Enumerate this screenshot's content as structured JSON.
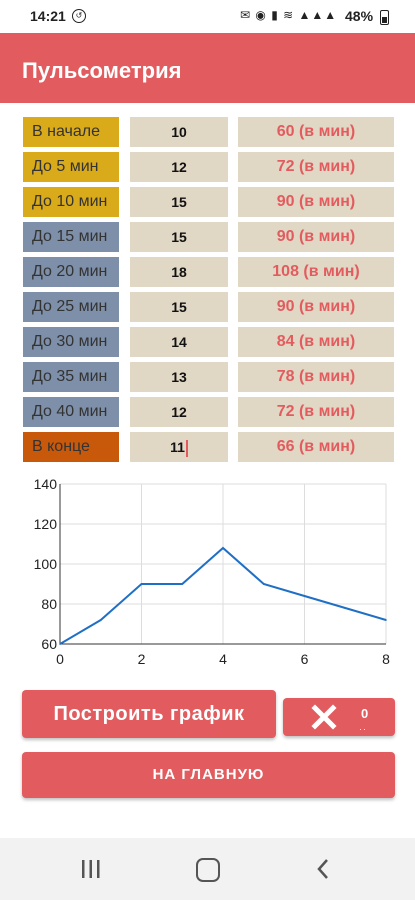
{
  "status_bar": {
    "time": "14:21",
    "battery": "48%"
  },
  "app": {
    "title": "Пульсометрия"
  },
  "rows": [
    {
      "label": "В начале",
      "value": "10",
      "result": "60 (в мин)",
      "color": "#d9ab1b"
    },
    {
      "label": "До 5 мин",
      "value": "12",
      "result": "72 (в мин)",
      "color": "#d9ab1b"
    },
    {
      "label": "До 10 мин",
      "value": "15",
      "result": "90 (в мин)",
      "color": "#d9ab1b"
    },
    {
      "label": "До 15 мин",
      "value": "15",
      "result": "90 (в мин)",
      "color": "#7e8fa9"
    },
    {
      "label": "До 20 мин",
      "value": "18",
      "result": "108 (в мин)",
      "color": "#7e8fa9"
    },
    {
      "label": "До 25 мин",
      "value": "15",
      "result": "90 (в мин)",
      "color": "#7e8fa9"
    },
    {
      "label": "До 30 мин",
      "value": "14",
      "result": "84 (в мин)",
      "color": "#7e8fa9"
    },
    {
      "label": "До 35 мин",
      "value": "13",
      "result": "78 (в мин)",
      "color": "#7e8fa9"
    },
    {
      "label": "До 40 мин",
      "value": "12",
      "result": "72 (в мин)",
      "color": "#7e8fa9"
    },
    {
      "label": "В конце",
      "value": "11",
      "result": "66 (в мин)",
      "color": "#c8590b"
    }
  ],
  "chart_data": {
    "type": "line",
    "x": [
      0,
      1,
      2,
      3,
      4,
      5,
      6,
      7,
      8
    ],
    "series": [
      {
        "values": [
          60,
          72,
          90,
          90,
          108,
          90,
          84,
          78,
          72
        ],
        "color": "#1f6fc5"
      }
    ],
    "xlim": [
      0,
      8
    ],
    "ylim": [
      60,
      140
    ],
    "xticks": [
      "0",
      "2",
      "4",
      "6",
      "8"
    ],
    "yticks": [
      "60",
      "80",
      "100",
      "120",
      "140"
    ],
    "grid": true
  },
  "buttons": {
    "build_label": "Построить график",
    "clear_count": "0",
    "home_label": "НА ГЛАВНУЮ"
  },
  "colors": {
    "accent": "#e25c5f",
    "field": "#e1d7c5"
  }
}
